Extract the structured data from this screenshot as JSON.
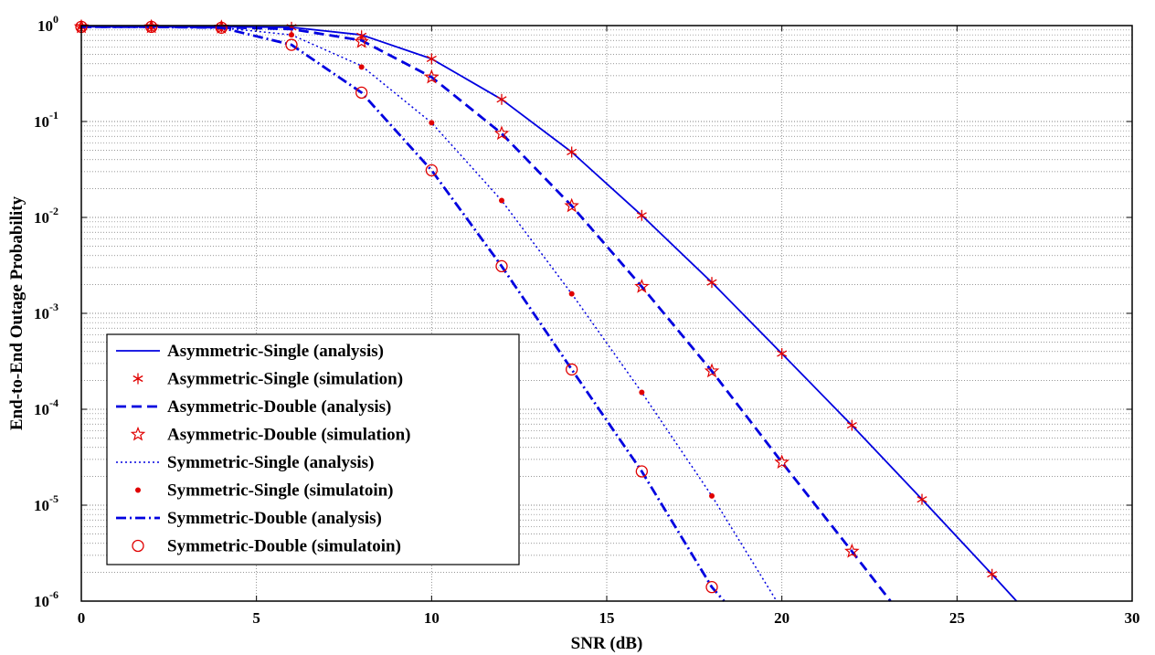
{
  "chart_data": {
    "type": "line",
    "title": "",
    "xlabel": "SNR (dB)",
    "ylabel": "End-to-End Outage Probability",
    "xlim": [
      0,
      30
    ],
    "ylim": [
      1e-06,
      1
    ],
    "yscale": "log",
    "grid": true,
    "legend_position": "bottom-left",
    "x_ticks": [
      "0",
      "5",
      "10",
      "15",
      "20",
      "25",
      "30"
    ],
    "y_ticks": [
      {
        "base": "10",
        "exp": "0"
      },
      {
        "base": "10",
        "exp": "-1"
      },
      {
        "base": "10",
        "exp": "-2"
      },
      {
        "base": "10",
        "exp": "-3"
      },
      {
        "base": "10",
        "exp": "-4"
      },
      {
        "base": "10",
        "exp": "-5"
      },
      {
        "base": "10",
        "exp": "-6"
      }
    ],
    "series": [
      {
        "name": "Asymmetric-Single (analysis)",
        "style": "solid",
        "color": "#0000e0",
        "x": [
          0,
          2,
          4,
          6,
          8,
          10,
          12,
          14,
          16,
          18,
          20,
          22,
          24,
          26,
          26.7
        ],
        "y": [
          0.97,
          0.97,
          0.97,
          0.96,
          0.8,
          0.45,
          0.17,
          0.048,
          0.0105,
          0.0021,
          0.00038,
          6.8e-05,
          1.15e-05,
          1.9e-06,
          1e-06
        ]
      },
      {
        "name": "Asymmetric-Single (simulation)",
        "marker": "asterisk",
        "color": "#e00000",
        "x": [
          0,
          2,
          4,
          6,
          8,
          10,
          12,
          14,
          16,
          18,
          20,
          22,
          24,
          26
        ],
        "y": [
          0.97,
          0.97,
          0.97,
          0.96,
          0.78,
          0.45,
          0.17,
          0.048,
          0.0105,
          0.0021,
          0.00038,
          6.8e-05,
          1.15e-05,
          1.9e-06
        ]
      },
      {
        "name": "Asymmetric-Double (analysis)",
        "style": "dashed",
        "color": "#0000e0",
        "x": [
          0,
          2,
          4,
          6,
          8,
          10,
          12,
          14,
          16,
          18,
          20,
          22,
          23.1
        ],
        "y": [
          0.97,
          0.97,
          0.96,
          0.92,
          0.7,
          0.29,
          0.075,
          0.0132,
          0.0019,
          0.00025,
          2.8e-05,
          3.3e-06,
          1e-06
        ]
      },
      {
        "name": "Asymmetric-Double (simulation)",
        "marker": "star",
        "color": "#e00000",
        "x": [
          0,
          2,
          4,
          8,
          10,
          12,
          14,
          16,
          18,
          20,
          22
        ],
        "y": [
          0.97,
          0.97,
          0.96,
          0.68,
          0.29,
          0.075,
          0.0132,
          0.0019,
          0.00025,
          2.8e-05,
          3.3e-06
        ]
      },
      {
        "name": "Symmetric-Single (analysis)",
        "style": "dotted",
        "color": "#0000e0",
        "x": [
          0,
          2,
          4,
          6,
          8,
          10,
          12,
          14,
          16,
          18,
          19.85
        ],
        "y": [
          0.97,
          0.97,
          0.95,
          0.8,
          0.38,
          0.097,
          0.015,
          0.0016,
          0.00015,
          1.25e-05,
          1e-06
        ]
      },
      {
        "name": "Symmetric-Single (simulatoin)",
        "marker": "dot",
        "color": "#e00000",
        "x": [
          0,
          2,
          4,
          6,
          8,
          10,
          12,
          14,
          16,
          18
        ],
        "y": [
          0.97,
          0.97,
          0.95,
          0.8,
          0.37,
          0.097,
          0.015,
          0.0016,
          0.00015,
          1.25e-05
        ]
      },
      {
        "name": "Symmetric-Double (analysis)",
        "style": "dashdot",
        "color": "#0000e0",
        "x": [
          0,
          2,
          4,
          6,
          8,
          10,
          12,
          14,
          16,
          18,
          18.35
        ],
        "y": [
          0.97,
          0.97,
          0.95,
          0.63,
          0.2,
          0.031,
          0.0031,
          0.00026,
          2.25e-05,
          1.4e-06,
          1e-06
        ]
      },
      {
        "name": "Symmetric-Double (simulatoin)",
        "marker": "circle",
        "color": "#e00000",
        "x": [
          0,
          2,
          4,
          6,
          8,
          10,
          12,
          14,
          16,
          18
        ],
        "y": [
          0.97,
          0.97,
          0.95,
          0.63,
          0.2,
          0.031,
          0.0031,
          0.00026,
          2.25e-05,
          1.4e-06
        ]
      }
    ]
  }
}
